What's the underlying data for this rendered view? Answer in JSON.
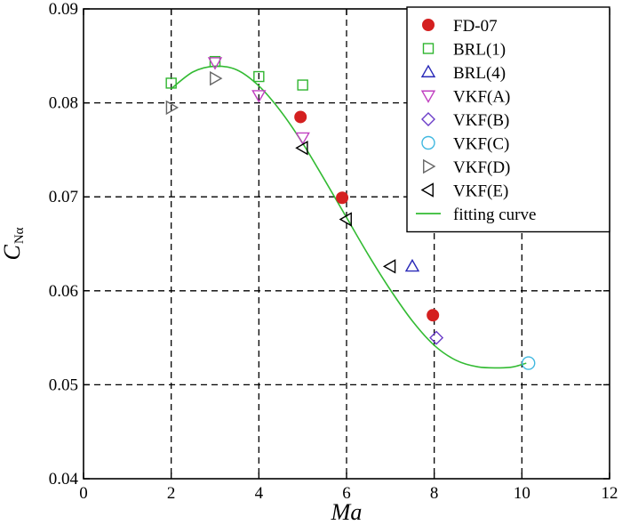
{
  "chart_data": {
    "type": "scatter",
    "xlabel": "Ma",
    "ylabel": "C",
    "ylabel_sub": "Nα",
    "xlim": [
      0,
      12
    ],
    "ylim": [
      0.04,
      0.09
    ],
    "xticks": [
      0,
      2,
      4,
      6,
      8,
      10,
      12
    ],
    "yticks": [
      0.04,
      0.05,
      0.06,
      0.07,
      0.08,
      0.09
    ],
    "xtick_labels": [
      "0",
      "2",
      "4",
      "6",
      "8",
      "10",
      "12"
    ],
    "ytick_labels": [
      "0.04",
      "0.05",
      "0.06",
      "0.07",
      "0.08",
      "0.09"
    ],
    "grid": true,
    "legend_position": "top-right",
    "series": [
      {
        "name": "FD-07",
        "marker": "circle-filled",
        "color": "#d42020",
        "points": [
          [
            4.95,
            0.0785
          ],
          [
            5.9,
            0.0699
          ],
          [
            7.97,
            0.0574
          ]
        ]
      },
      {
        "name": "BRL(1)",
        "marker": "square",
        "color": "#2fb52f",
        "points": [
          [
            2.0,
            0.0821
          ],
          [
            3.0,
            0.0844
          ],
          [
            4.0,
            0.0828
          ],
          [
            5.0,
            0.0819
          ]
        ]
      },
      {
        "name": "BRL(4)",
        "marker": "triangle-up",
        "color": "#2a2ab8",
        "points": [
          [
            7.5,
            0.0626
          ]
        ]
      },
      {
        "name": "VKF(A)",
        "marker": "triangle-down",
        "color": "#c040c0",
        "points": [
          [
            3.0,
            0.0843
          ],
          [
            4.0,
            0.0808
          ],
          [
            5.0,
            0.0763
          ]
        ]
      },
      {
        "name": "VKF(B)",
        "marker": "diamond",
        "color": "#6a3cc8",
        "points": [
          [
            8.05,
            0.055
          ]
        ]
      },
      {
        "name": "VKF(C)",
        "marker": "circle",
        "color": "#40b8e0",
        "points": [
          [
            10.15,
            0.0523
          ]
        ]
      },
      {
        "name": "VKF(D)",
        "marker": "triangle-right",
        "color": "#666666",
        "points": [
          [
            2.0,
            0.0795
          ],
          [
            3.0,
            0.0826
          ]
        ]
      },
      {
        "name": "VKF(E)",
        "marker": "triangle-left",
        "color": "#000000",
        "points": [
          [
            5.0,
            0.0752
          ],
          [
            6.0,
            0.0676
          ],
          [
            7.0,
            0.0626
          ]
        ]
      },
      {
        "name": "fitting curve",
        "marker": "line",
        "color": "#33bb33",
        "points": [
          [
            2.0,
            0.0815
          ],
          [
            2.5,
            0.0833
          ],
          [
            3.0,
            0.0839
          ],
          [
            3.5,
            0.0835
          ],
          [
            4.0,
            0.0818
          ],
          [
            4.5,
            0.0791
          ],
          [
            5.0,
            0.0757
          ],
          [
            5.5,
            0.0718
          ],
          [
            6.0,
            0.0678
          ],
          [
            6.5,
            0.0638
          ],
          [
            7.0,
            0.0601
          ],
          [
            7.5,
            0.0568
          ],
          [
            8.0,
            0.0542
          ],
          [
            8.5,
            0.0526
          ],
          [
            9.0,
            0.0519
          ],
          [
            9.5,
            0.0518
          ],
          [
            9.8,
            0.0519
          ],
          [
            10.1,
            0.0523
          ]
        ]
      }
    ]
  }
}
